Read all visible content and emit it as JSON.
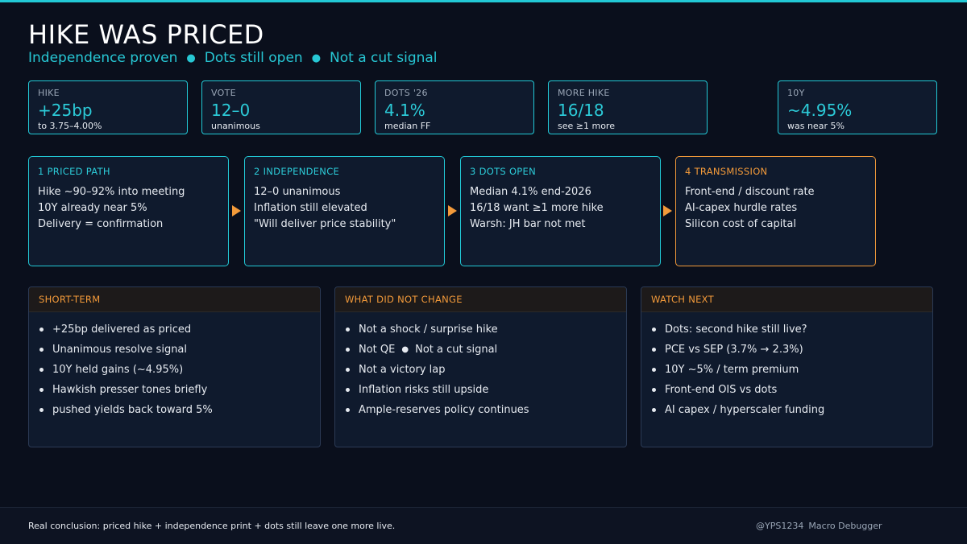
{
  "header": {
    "title": "HIKE WAS PRICED",
    "subtitle": [
      "Independence proven",
      "Dots still open",
      "Not a cut signal"
    ]
  },
  "stats": [
    {
      "label": "HIKE",
      "value": "+25bp",
      "sub": "to 3.75–4.00%"
    },
    {
      "label": "VOTE",
      "value": "12–0",
      "sub": "unanimous"
    },
    {
      "label": "DOTS '26",
      "value": "4.1%",
      "sub": "median FF"
    },
    {
      "label": "MORE HIKE",
      "value": "16/18",
      "sub": "see ≥1 more"
    },
    {
      "label": "10Y",
      "value": "~4.95%",
      "sub": "was near 5%"
    }
  ],
  "steps": [
    {
      "heading": "1  PRICED PATH",
      "lines": [
        "Hike ~90–92% into meeting",
        "10Y already near 5%",
        "Delivery = confirmation"
      ]
    },
    {
      "heading": "2  INDEPENDENCE",
      "lines": [
        "12–0 unanimous",
        "Inflation still elevated",
        "\"Will deliver price stability\""
      ]
    },
    {
      "heading": "3  DOTS OPEN",
      "lines": [
        "Median 4.1% end-2026",
        "16/18 want ≥1 more hike",
        "Warsh: JH bar not met"
      ]
    },
    {
      "heading": "4  TRANSMISSION",
      "lines": [
        "Front-end / discount rate",
        "AI-capex hurdle rates",
        "Silicon cost of capital"
      ]
    }
  ],
  "panels": [
    {
      "heading": "SHORT-TERM",
      "items": [
        "+25bp delivered as priced",
        "Unanimous resolve signal",
        "10Y held gains (~4.95%)",
        "Hawkish presser tones briefly",
        "pushed yields back toward 5%"
      ]
    },
    {
      "heading": "WHAT DID NOT CHANGE",
      "items": [
        "Not a shock / surprise hike",
        "Not QE",
        "Not a cut signal",
        "Not a victory lap",
        "Inflation risks still upside",
        "Ample-reserves policy continues"
      ]
    },
    {
      "heading": "WATCH NEXT",
      "items": [
        "Dots: second hike still live?",
        "PCE vs SEP (3.7% → 2.3%)",
        "10Y ~5% / term premium",
        "Front-end OIS vs dots",
        "AI capex / hyperscaler funding"
      ]
    }
  ],
  "footer": {
    "conclusion": "Real conclusion: priced hike + independence print + dots still leave one more live.",
    "handle": "@YPS1234",
    "brand": "Macro Debugger"
  },
  "colors": {
    "accent": "#22c9d6",
    "highlight": "#f39a3a",
    "background": "#0a0f1c"
  }
}
